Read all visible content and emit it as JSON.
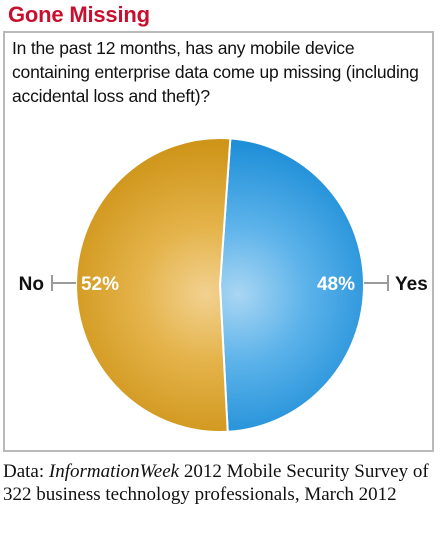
{
  "title": "Gone Missing",
  "question": "In the past 12 months, has any mobile device containing enterprise data come up missing (including accidental loss and theft)?",
  "source": {
    "prefix": "Data: ",
    "publication": "InformationWeek",
    "rest": " 2012 Mobile Security Survey of 322 business technology professionals, March 2012"
  },
  "colors": {
    "title": "#c8102e",
    "yes": "#2b9ade",
    "no": "#d49a1c",
    "border": "#b9b9b9"
  },
  "chart_data": {
    "type": "pie",
    "slices": [
      {
        "label": "Yes",
        "value": 48,
        "display": "48%",
        "color": "#2b9ade",
        "side": "right"
      },
      {
        "label": "No",
        "value": 52,
        "display": "52%",
        "color": "#d49a1c",
        "side": "left"
      }
    ]
  }
}
